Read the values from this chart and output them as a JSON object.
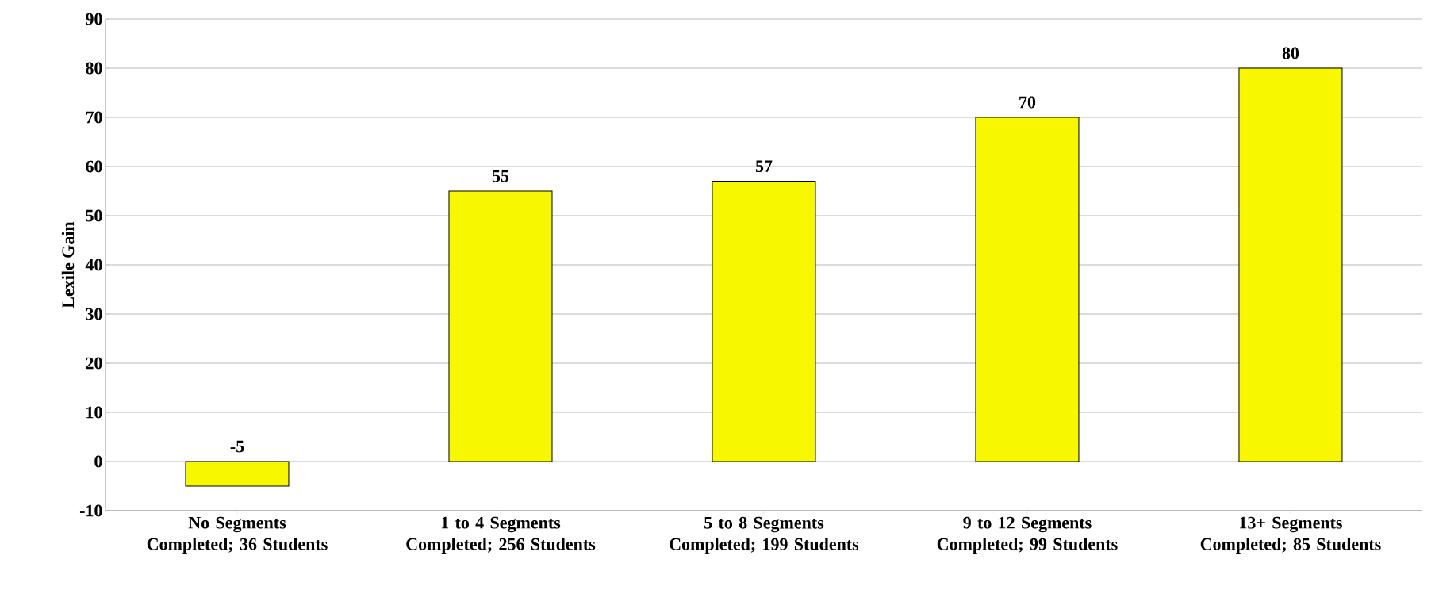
{
  "chart_data": {
    "type": "bar",
    "ylabel": "Lexile Gain",
    "categories": [
      "No Segments Completed; 36 Students",
      "1 to 4 Segments Completed; 256 Students",
      "5 to 8 Segments Completed; 199 Students",
      "9 to 12 Segments Completed; 99 Students",
      "13+ Segments Completed; 85 Students"
    ],
    "values": [
      -5,
      55,
      57,
      70,
      80
    ],
    "color": "#f7f700",
    "ylim": [
      -10,
      90
    ],
    "yticks": [
      -10,
      0,
      10,
      20,
      30,
      40,
      50,
      60,
      70,
      80,
      90
    ],
    "grid": "y",
    "data_labels": true
  }
}
